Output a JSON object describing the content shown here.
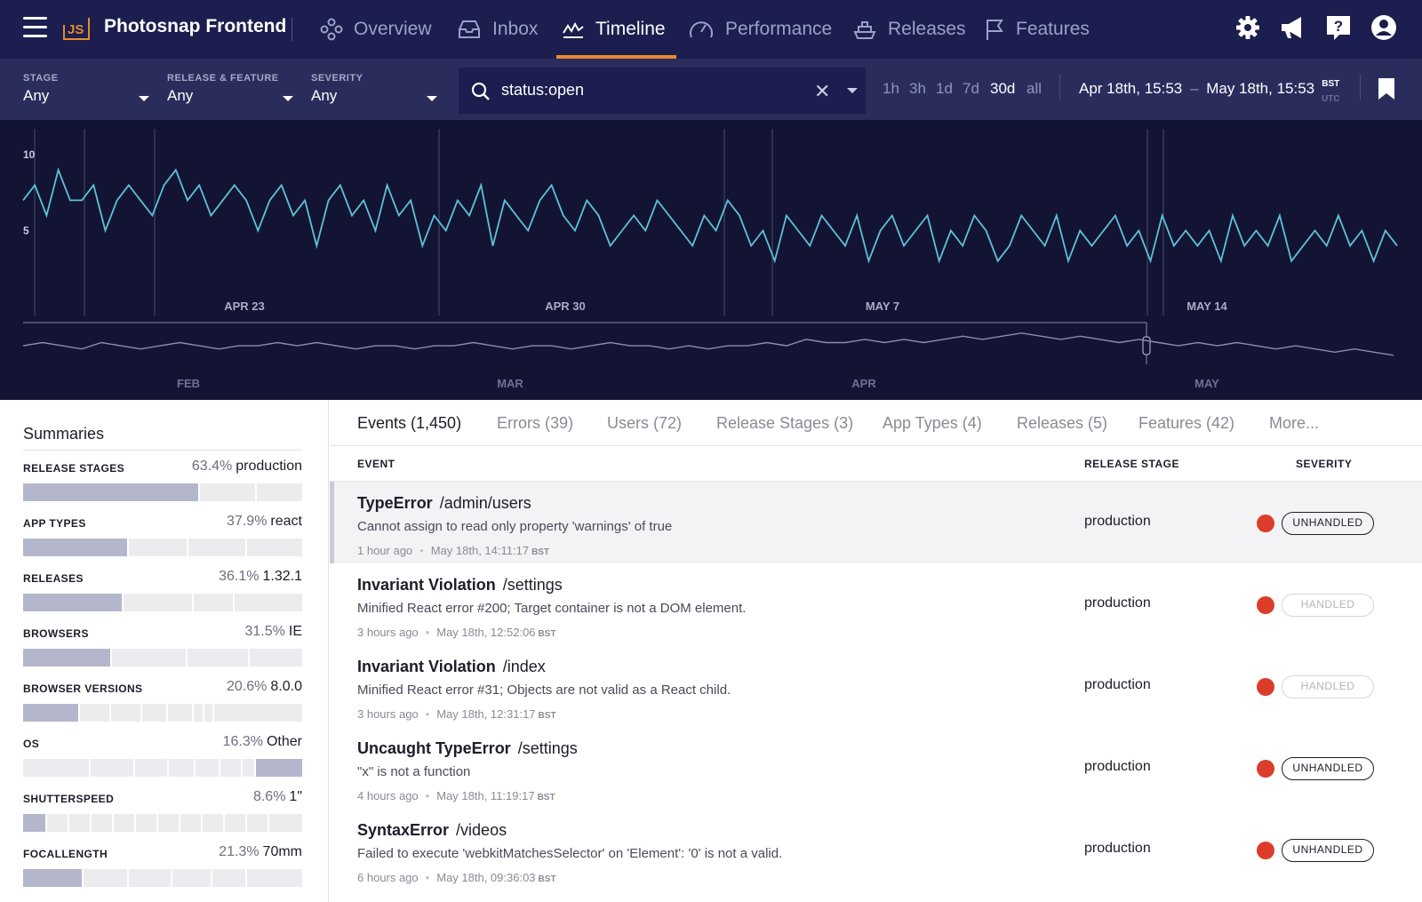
{
  "app": {
    "logo_text": "JS",
    "name": "Photosnap Frontend"
  },
  "nav": {
    "items": [
      {
        "label": "Overview",
        "icon": "overview-icon"
      },
      {
        "label": "Inbox",
        "icon": "inbox-icon"
      },
      {
        "label": "Timeline",
        "icon": "timeline-icon",
        "active": true
      },
      {
        "label": "Performance",
        "icon": "gauge-icon"
      },
      {
        "label": "Releases",
        "icon": "ship-icon"
      },
      {
        "label": "Features",
        "icon": "flag-icon"
      }
    ],
    "right_icons": [
      "gear-icon",
      "megaphone-icon",
      "help-icon",
      "account-icon"
    ]
  },
  "filters": {
    "stage": {
      "label": "STAGE",
      "value": "Any"
    },
    "release_feature": {
      "label": "RELEASE & FEATURE",
      "value": "Any"
    },
    "severity": {
      "label": "SEVERITY",
      "value": "Any"
    },
    "search": {
      "value": "status:open"
    },
    "ranges": [
      "1h",
      "3h",
      "1d",
      "7d",
      "30d",
      "all"
    ],
    "active_range": "30d",
    "date_from": "Apr 18th, 15:53",
    "date_sep": "–",
    "date_to": "May 18th, 15:53",
    "tz_active": "BST",
    "tz_other": "UTC"
  },
  "chart_data": [
    {
      "type": "line",
      "name": "events-detail",
      "x_ticks": [
        "APR 23",
        "APR 30",
        "MAY 7",
        "MAY 14"
      ],
      "y_ticks": [
        "10",
        "5"
      ],
      "ylim": [
        0,
        11
      ],
      "series": [
        {
          "values": [
            7,
            8,
            6,
            9,
            7,
            7,
            8,
            5,
            7,
            8,
            7,
            6,
            8,
            9,
            7,
            8,
            6,
            7,
            8,
            7,
            5,
            7,
            8,
            6,
            7,
            4,
            7,
            8,
            6,
            7,
            5,
            8,
            6,
            7,
            4,
            6,
            5,
            7,
            6,
            8,
            4,
            7,
            6,
            5,
            7,
            8,
            6,
            5,
            7,
            6,
            4,
            5,
            6,
            5,
            7,
            6,
            5,
            4,
            6,
            5,
            7,
            6,
            4,
            5,
            3,
            6,
            5,
            4,
            6,
            5,
            4,
            6,
            3,
            5,
            6,
            4,
            5,
            6,
            3,
            5,
            4,
            6,
            5,
            3,
            4,
            6,
            5,
            4,
            6,
            3,
            5,
            4,
            5,
            6,
            4,
            5,
            3,
            6,
            4,
            5,
            4,
            5,
            3,
            6,
            4,
            5,
            4,
            6,
            3,
            4,
            5,
            4,
            6,
            4,
            5,
            3,
            5,
            4
          ]
        }
      ]
    },
    {
      "type": "area",
      "name": "events-overview",
      "x_ticks": [
        "FEB",
        "MAR",
        "APR",
        "MAY"
      ],
      "series": [
        {
          "values": [
            5,
            6,
            5,
            4,
            6,
            5,
            4,
            5,
            6,
            5,
            4,
            5,
            5,
            6,
            5,
            6,
            5,
            4,
            5,
            5,
            4,
            5,
            5,
            6,
            5,
            4,
            5,
            5,
            4,
            5,
            6,
            5,
            5,
            4,
            5,
            4,
            5,
            5,
            6,
            5,
            7,
            6,
            6,
            7,
            6,
            7,
            6,
            7,
            8,
            7,
            8,
            9,
            8,
            7,
            8,
            7,
            6,
            7,
            6,
            5,
            6,
            5,
            6,
            5,
            4,
            5,
            4,
            3,
            4,
            3,
            2
          ]
        }
      ]
    }
  ],
  "sidebar": {
    "title": "Summaries",
    "rows": [
      {
        "label": "RELEASE STAGES",
        "pct": "63.4%",
        "value": "production",
        "segments": [
          0.634,
          0.2,
          0.166
        ],
        "hi": 0
      },
      {
        "label": "APP TYPES",
        "pct": "37.9%",
        "value": "react",
        "segments": [
          0.379,
          0.21,
          0.21,
          0.2
        ],
        "hi": 0
      },
      {
        "label": "RELEASES",
        "pct": "36.1%",
        "value": "1.32.1",
        "segments": [
          0.361,
          0.25,
          0.14,
          0.248
        ],
        "hi": 0
      },
      {
        "label": "BROWSERS",
        "pct": "31.5%",
        "value": "IE",
        "segments": [
          0.315,
          0.27,
          0.22,
          0.19
        ],
        "hi": 0
      },
      {
        "label": "BROWSER VERSIONS",
        "pct": "20.6%",
        "value": "8.0.0",
        "segments": [
          0.206,
          0.11,
          0.11,
          0.09,
          0.09,
          0.03,
          0.03,
          0.33
        ],
        "hi": 0
      },
      {
        "label": "OS",
        "pct": "16.3%",
        "value": "Other",
        "segments": [
          0.23,
          0.15,
          0.11,
          0.09,
          0.08,
          0.07,
          0.04,
          0.163
        ],
        "hi": 7
      },
      {
        "label": "SHUTTERSPEED",
        "pct": "8.6%",
        "value": "1\"",
        "segments": [
          0.086,
          0.08,
          0.08,
          0.08,
          0.08,
          0.08,
          0.08,
          0.08,
          0.08,
          0.08,
          0.08,
          0.13
        ],
        "hi": 0
      },
      {
        "label": "FOCALLENGTH",
        "pct": "21.3%",
        "value": "70mm",
        "segments": [
          0.213,
          0.16,
          0.15,
          0.14,
          0.12,
          0.2
        ],
        "hi": 0
      }
    ]
  },
  "tabs": [
    {
      "label": "Events (1,450)",
      "active": true
    },
    {
      "label": "Errors (39)"
    },
    {
      "label": "Users (72)"
    },
    {
      "label": "Release Stages (3)"
    },
    {
      "label": "App Types (4)"
    },
    {
      "label": "Releases (5)"
    },
    {
      "label": "Features (42)"
    },
    {
      "label": "More..."
    }
  ],
  "table": {
    "headers": {
      "event": "EVENT",
      "stage": "RELEASE STAGE",
      "severity": "SEVERITY"
    },
    "rows": [
      {
        "error": "TypeError",
        "context": "/admin/users",
        "message": "Cannot assign to read only property 'warnings' of true",
        "ago": "1 hour ago",
        "time": "May 18th, 14:11:17",
        "tz": "BST",
        "stage": "production",
        "badge": "UNHANDLED",
        "handled": false,
        "selected": true
      },
      {
        "error": "Invariant Violation",
        "context": "/settings",
        "message": "Minified React error #200; Target container is not a DOM element.",
        "ago": "3 hours ago",
        "time": "May 18th, 12:52:06",
        "tz": "BST",
        "stage": "production",
        "badge": "HANDLED",
        "handled": true
      },
      {
        "error": "Invariant Violation",
        "context": "/index",
        "message": "Minified React error #31; Objects are not valid as a React child.",
        "ago": "3 hours ago",
        "time": "May 18th, 12:31:17",
        "tz": "BST",
        "stage": "production",
        "badge": "HANDLED",
        "handled": true
      },
      {
        "error": "Uncaught TypeError",
        "context": "/settings",
        "message": "\"x\" is not a function",
        "ago": "4 hours ago",
        "time": "May 18th, 11:19:17",
        "tz": "BST",
        "stage": "production",
        "badge": "UNHANDLED",
        "handled": false
      },
      {
        "error": "SyntaxError",
        "context": "/videos",
        "message": "Failed to execute 'webkitMatchesSelector' on 'Element': '0' is not a valid.",
        "ago": "6 hours ago",
        "time": "May 18th, 09:36:03",
        "tz": "BST",
        "stage": "production",
        "badge": "UNHANDLED",
        "handled": false
      }
    ]
  },
  "colors": {
    "nav_bg": "#1b1e4e",
    "filter_bg": "#2a2d5c",
    "chart_bg": "#131433",
    "line": "#5ec2d6",
    "accent": "#e68b2e",
    "severity_error": "#dc3d2a"
  }
}
